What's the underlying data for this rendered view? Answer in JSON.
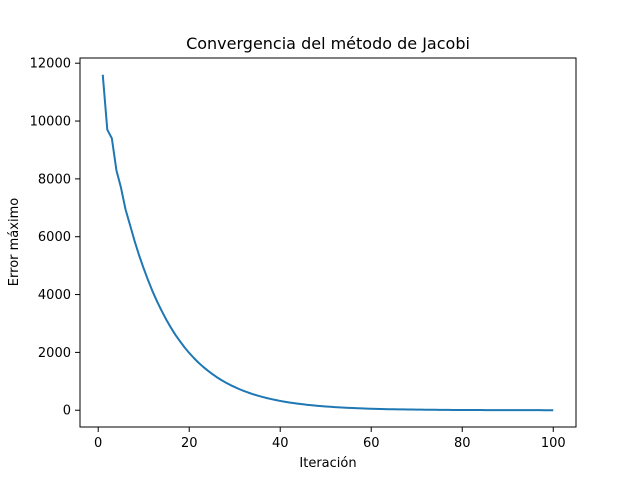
{
  "chart_data": {
    "type": "line",
    "title": "Convergencia del método de Jacobi",
    "xlabel": "Iteración",
    "ylabel": "Error máximo",
    "xlim": [
      -4,
      105
    ],
    "ylim": [
      -580,
      12180
    ],
    "x_ticks": [
      0,
      20,
      40,
      60,
      80,
      100
    ],
    "y_ticks": [
      0,
      2000,
      4000,
      6000,
      8000,
      10000,
      12000
    ],
    "x_tick_labels": [
      "0",
      "20",
      "40",
      "60",
      "80",
      "100"
    ],
    "y_tick_labels": [
      "0",
      "2000",
      "4000",
      "6000",
      "8000",
      "10000",
      "12000"
    ],
    "grid": false,
    "line_color": "#1f77b4",
    "series": [
      {
        "x": [
          1,
          2,
          3,
          4,
          5,
          6,
          7,
          8,
          9,
          10,
          11,
          12,
          13,
          14,
          15,
          16,
          17,
          18,
          19,
          20,
          21,
          22,
          23,
          24,
          25,
          26,
          27,
          28,
          29,
          30,
          31,
          32,
          33,
          34,
          35,
          36,
          37,
          38,
          39,
          40,
          41,
          42,
          43,
          44,
          45,
          46,
          47,
          48,
          49,
          50,
          51,
          52,
          53,
          54,
          55,
          56,
          57,
          58,
          59,
          60,
          61,
          62,
          63,
          64,
          65,
          66,
          67,
          68,
          69,
          70,
          71,
          72,
          73,
          74,
          75,
          76,
          77,
          78,
          79,
          80,
          81,
          82,
          83,
          84,
          85,
          86,
          87,
          88,
          89,
          90,
          91,
          92,
          93,
          94,
          95,
          96,
          97,
          98,
          99,
          100
        ],
        "values": [
          11600,
          9700,
          9400,
          8300,
          7700,
          6950,
          6400,
          5850,
          5350,
          4900,
          4480,
          4090,
          3740,
          3420,
          3120,
          2850,
          2600,
          2380,
          2170,
          1980,
          1810,
          1650,
          1510,
          1380,
          1260,
          1150,
          1050,
          960,
          875,
          800,
          730,
          667,
          609,
          556,
          508,
          464,
          424,
          387,
          353,
          322,
          294,
          269,
          245,
          224,
          205,
          187,
          171,
          156,
          142,
          130,
          119,
          108,
          99,
          90,
          83,
          75,
          69,
          63,
          57,
          52,
          48,
          44,
          40,
          36,
          33,
          30,
          28,
          25,
          23,
          21,
          19,
          18,
          16,
          15,
          13,
          12,
          11,
          10,
          9,
          8,
          8,
          7,
          6,
          6,
          5,
          5,
          4,
          4,
          4,
          3,
          3,
          3,
          2,
          2,
          2,
          2,
          2,
          1,
          1,
          1
        ]
      }
    ]
  }
}
